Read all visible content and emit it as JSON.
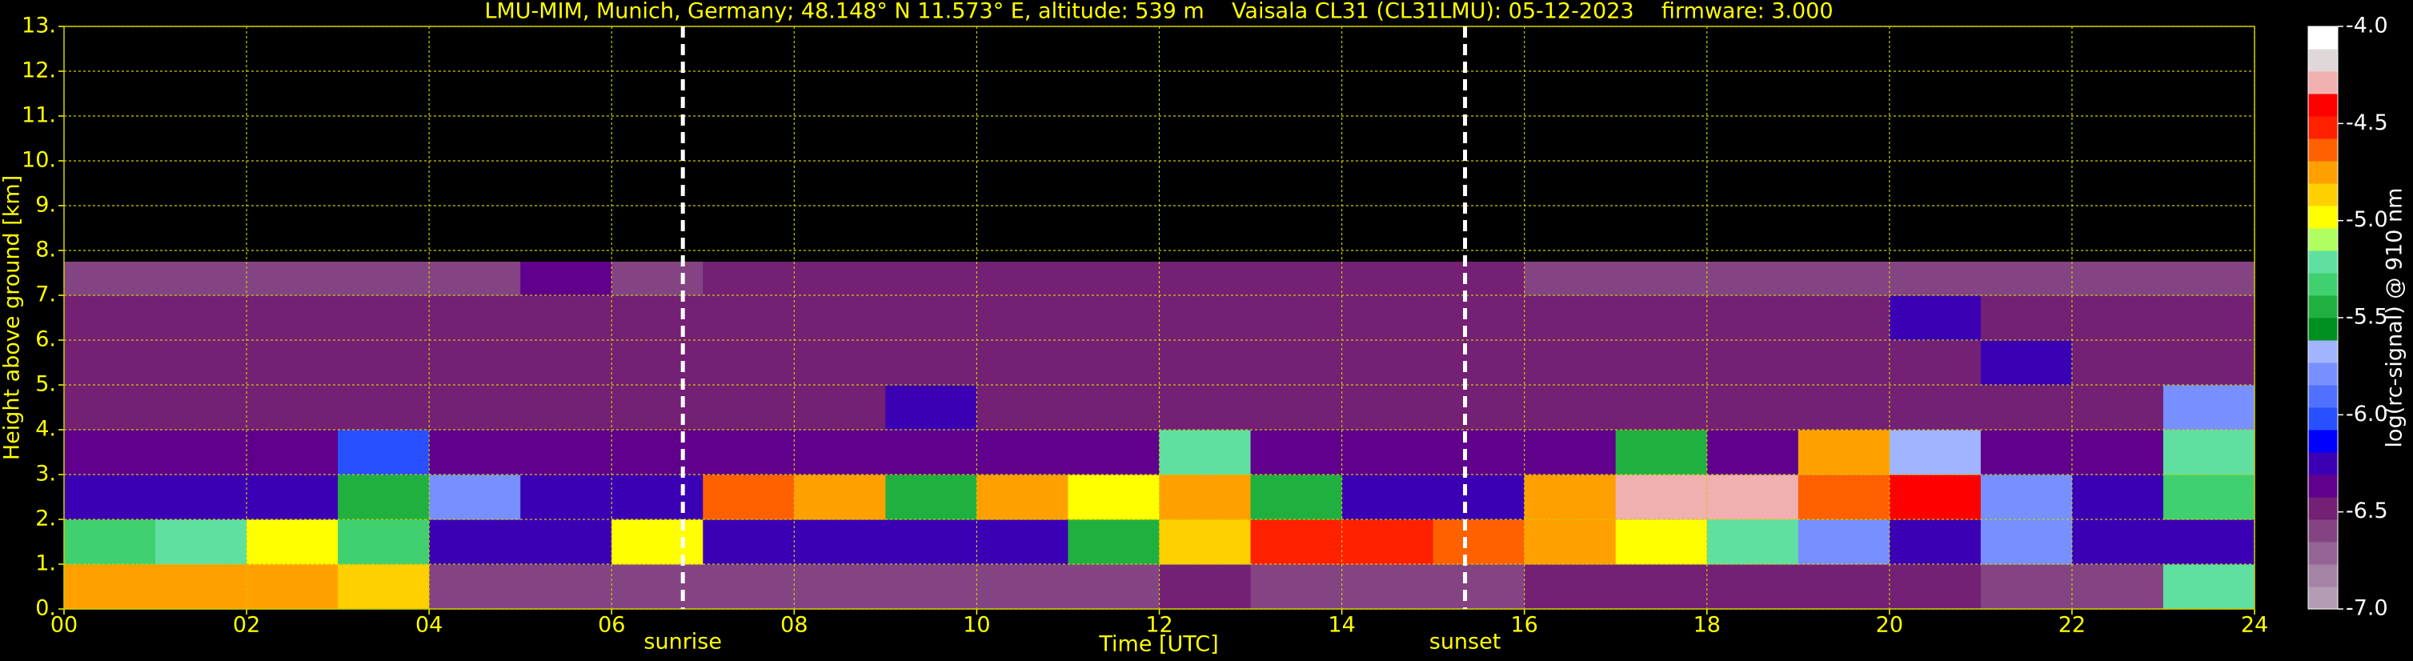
{
  "chart_data": {
    "type": "heatmap",
    "title": "LMU-MIM, Munich, Germany; 48.148° N 11.573° E, altitude: 539 m    Vaisala CL31 (CL31LMU): 05-12-2023    firmware: 3.000",
    "xlabel": "Time [UTC]",
    "ylabel": "Height above ground [km]",
    "colorbar_label": "log(rc-signal) @ 910 nm",
    "xlim": [
      0,
      24
    ],
    "ylim": [
      0,
      13
    ],
    "clim": [
      -7,
      -4
    ],
    "xticks": [
      {
        "value": 0,
        "label": "00"
      },
      {
        "value": 2,
        "label": "02"
      },
      {
        "value": 4,
        "label": "04"
      },
      {
        "value": 6,
        "label": "06"
      },
      {
        "value": 8,
        "label": "08"
      },
      {
        "value": 10,
        "label": "10"
      },
      {
        "value": 12,
        "label": "12"
      },
      {
        "value": 14,
        "label": "14"
      },
      {
        "value": 16,
        "label": "16"
      },
      {
        "value": 18,
        "label": "18"
      },
      {
        "value": 20,
        "label": "20"
      },
      {
        "value": 22,
        "label": "22"
      },
      {
        "value": 24,
        "label": "24"
      }
    ],
    "yticks": [
      {
        "value": 0,
        "label": "0."
      },
      {
        "value": 1,
        "label": "1."
      },
      {
        "value": 2,
        "label": "2."
      },
      {
        "value": 3,
        "label": "3."
      },
      {
        "value": 4,
        "label": "4."
      },
      {
        "value": 5,
        "label": "5."
      },
      {
        "value": 6,
        "label": "6."
      },
      {
        "value": 7,
        "label": "7."
      },
      {
        "value": 8,
        "label": "8."
      },
      {
        "value": 9,
        "label": "9."
      },
      {
        "value": 10,
        "label": "10."
      },
      {
        "value": 11,
        "label": "11."
      },
      {
        "value": 12,
        "label": "12."
      },
      {
        "value": 13,
        "label": "13."
      }
    ],
    "cticks": [
      {
        "value": -7,
        "label": "-7.0"
      },
      {
        "value": -6.5,
        "label": "-6.5"
      },
      {
        "value": -6,
        "label": "-6.0"
      },
      {
        "value": -5.5,
        "label": "-5.5"
      },
      {
        "value": -5,
        "label": "-5.0"
      },
      {
        "value": -4.5,
        "label": "-4.5"
      },
      {
        "value": -4,
        "label": "-4.0"
      }
    ],
    "grid": true,
    "grid_color": "#cccc00",
    "colormap": [
      "#b49bb4",
      "#a583a5",
      "#946594",
      "#844484",
      "#742074",
      "#60008c",
      "#3c00b4",
      "#0000ff",
      "#2850ff",
      "#5070ff",
      "#7890ff",
      "#a0b4ff",
      "#009020",
      "#20b040",
      "#40d070",
      "#60e0a0",
      "#b0ff60",
      "#ffff00",
      "#ffd000",
      "#ffa000",
      "#ff6000",
      "#ff2000",
      "#ff0000",
      "#f0b0b0",
      "#e0d8d8",
      "#ffffff"
    ],
    "xbins": [
      0,
      1,
      2,
      3,
      4,
      5,
      6,
      7,
      8,
      9,
      10,
      11,
      12,
      13,
      14,
      15,
      16,
      17,
      18,
      19,
      20,
      21,
      22,
      23,
      24
    ],
    "ybins": [
      0,
      1,
      2,
      3,
      4,
      5,
      6,
      7,
      7.75
    ],
    "z": [
      [
        -4.8,
        -4.7,
        -4.8,
        -4.9,
        -6.6,
        -6.6,
        -6.6,
        -6.6,
        -6.6,
        -6.6,
        -6.6,
        -6.6,
        -6.5,
        -6.6,
        -6.6,
        -6.6,
        -6.5,
        -6.5,
        -6.5,
        -6.5,
        -6.5,
        -6.6,
        -6.6,
        -5.2
      ],
      [
        -5.3,
        -5.2,
        -5.0,
        -5.3,
        -6.3,
        -6.3,
        -5.0,
        -6.2,
        -6.2,
        -6.2,
        -6.2,
        -5.5,
        -4.9,
        -4.5,
        -4.5,
        -4.6,
        -4.7,
        -5.0,
        -5.2,
        -5.8,
        -6.3,
        -5.8,
        -6.3,
        -6.3
      ],
      [
        -6.3,
        -6.3,
        -6.3,
        -5.5,
        -5.8,
        -6.3,
        -6.3,
        -4.6,
        -4.8,
        -5.5,
        -4.8,
        -5.0,
        -4.8,
        -5.5,
        -6.3,
        -6.3,
        -4.8,
        -4.3,
        -4.3,
        -4.6,
        -4.4,
        -5.8,
        -6.3,
        -5.3
      ],
      [
        -6.4,
        -6.4,
        -6.4,
        -6.0,
        -6.4,
        -6.4,
        -6.4,
        -6.4,
        -6.4,
        -6.4,
        -6.4,
        -6.4,
        -5.2,
        -6.4,
        -6.4,
        -6.4,
        -6.4,
        -5.4,
        -6.4,
        -4.8,
        -5.7,
        -6.4,
        -6.4,
        -5.2
      ],
      [
        -6.5,
        -6.5,
        -6.5,
        -6.5,
        -6.5,
        -6.5,
        -6.5,
        -6.5,
        -6.5,
        -6.2,
        -6.5,
        -6.5,
        -6.5,
        -6.5,
        -6.5,
        -6.5,
        -6.5,
        -6.5,
        -6.5,
        -6.5,
        -6.5,
        -6.5,
        -6.5,
        -5.8
      ],
      [
        -6.5,
        -6.5,
        -6.5,
        -6.5,
        -6.5,
        -6.5,
        -6.5,
        -6.5,
        -6.5,
        -6.5,
        -6.5,
        -6.5,
        -6.5,
        -6.5,
        -6.5,
        -6.5,
        -6.5,
        -6.5,
        -6.5,
        -6.5,
        -6.5,
        -6.2,
        -6.5,
        -6.5
      ],
      [
        -6.5,
        -6.5,
        -6.5,
        -6.5,
        -6.5,
        -6.5,
        -6.5,
        -6.5,
        -6.5,
        -6.5,
        -6.5,
        -6.5,
        -6.5,
        -6.5,
        -6.5,
        -6.5,
        -6.5,
        -6.5,
        -6.5,
        -6.5,
        -6.3,
        -6.5,
        -6.5,
        -6.5
      ],
      [
        -6.6,
        -6.6,
        -6.6,
        -6.6,
        -6.6,
        -6.4,
        -6.6,
        -6.5,
        -6.5,
        -6.5,
        -6.5,
        -6.5,
        -6.5,
        -6.5,
        -6.5,
        -6.5,
        -6.6,
        -6.6,
        -6.6,
        -6.6,
        -6.6,
        -6.6,
        -6.6,
        -6.6
      ]
    ],
    "annotations": [
      {
        "text": "sunrise",
        "x": 6.78
      },
      {
        "text": "sunset",
        "x": 15.35
      }
    ]
  }
}
